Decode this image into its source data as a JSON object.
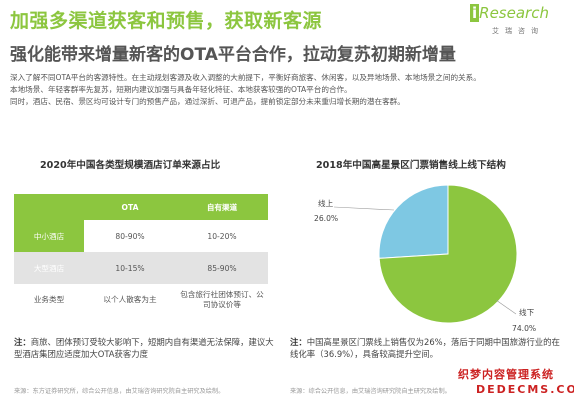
{
  "header": {
    "title": "加强多渠道获客和预售，获取新客源",
    "subtitle": "强化能带来增量新客的OTA平台合作，拉动复苏初期新增量",
    "logo_text": "Research",
    "logo_letter": "i",
    "logo_sub": "艾瑞咨询"
  },
  "intro": [
    "深入了解不同OTA平台的客源特性。在主动规划客源及收入调整的大前提下，平衡好商旅客、休闲客，以及异地场景、本地场景之间的关系。",
    "本地场景、年轻客群率先复苏，短期内建议加强与具备年轻化特征、本地获客较强的OTA平台的合作。",
    "同时，酒店、民宿、景区均可设计专门的预售产品，通过深折、可退产品，提前锁定部分未来重归增长期的潜在客群。"
  ],
  "left_panel": {
    "title": "2020年中国各类型规模酒店订单来源占比",
    "columns": [
      "",
      "OTA",
      "自有渠道"
    ],
    "rows": [
      {
        "label": "中小酒店",
        "ota": "80-90%",
        "own": "10-20%"
      },
      {
        "label": "大型酒店",
        "ota": "10-15%",
        "own": "85-90%"
      },
      {
        "label": "业务类型",
        "ota": "以个人散客为主",
        "own": "包含旅行社团体预订、公司协议价等"
      }
    ],
    "note_label": "注：",
    "note": "商旅、团体预订受较大影响下，短期内自有渠道无法保障，建议大型酒店集团应适度加大OTA获客力度",
    "source": "来源：东方证券研究所，综合公开信息，由艾瑞咨询研究院自主研究及绘制。"
  },
  "right_panel": {
    "title": "2018年中国高星景区门票销售线上线下结构",
    "note_label": "注：",
    "note": "中国高星景区门票线上销售仅为26%，落后于同期中国旅游行业的在线化率（36.9%），具备较高提升空间。",
    "source": "来源：综合公开信息，由艾瑞咨询研究院自主研究及绘制。"
  },
  "chart_data": {
    "type": "pie",
    "title": "2018年中国高星景区门票销售线上线下结构",
    "slices": [
      {
        "label": "线上",
        "value": 26.0,
        "display": "26.0%",
        "color": "#7ec8e3"
      },
      {
        "label": "线下",
        "value": 74.0,
        "display": "74.0%",
        "color": "#8cc63f"
      }
    ],
    "start": "top",
    "direction": "counterclockwise-for-first-slice"
  },
  "watermark": {
    "line1": "织梦内容管理系统",
    "line2": "DEDECMS.COM"
  }
}
